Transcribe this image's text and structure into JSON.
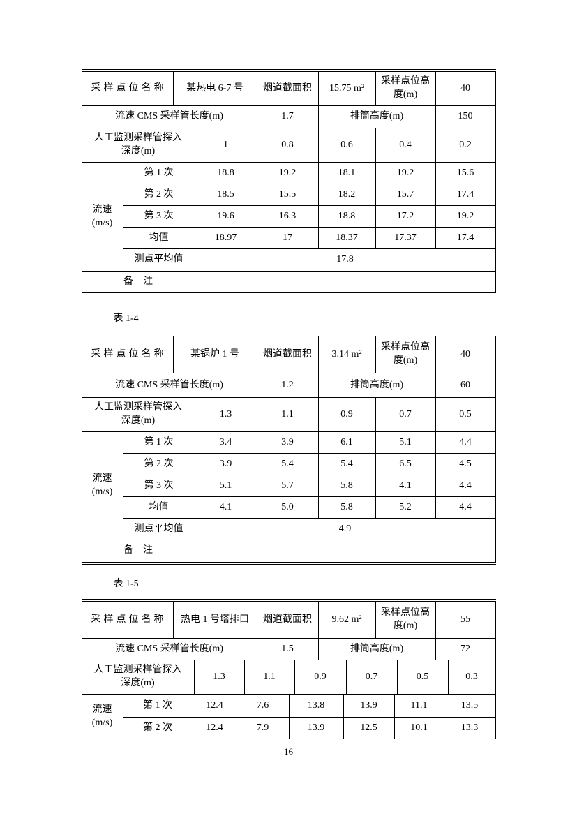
{
  "page_number": "16",
  "labels": {
    "name": "采样点位名称",
    "area": "烟道截面积",
    "height": "采样点位高\n度(m)",
    "cms": "流速 CMS 采样管长度(m)",
    "stack": "排筒高度(m)",
    "probe": "人工监测采样管探入\n深度(m)",
    "speed": "流速\n(m/s)",
    "point_avg": "测点平均值",
    "remark": "备　注"
  },
  "caption_b": "表 1-4",
  "caption_c": "表 1-5",
  "table_a": {
    "name_value": "某热电 6-7 号",
    "area_value": "15.75 m²",
    "height_value": "40",
    "cms_value": "1.7",
    "stack_value": "150",
    "probe_values": [
      "1",
      "0.8",
      "0.6",
      "0.4",
      "0.2"
    ],
    "trials": [
      {
        "label": "第 1 次",
        "values": [
          "18.8",
          "19.2",
          "18.1",
          "19.2",
          "15.6"
        ]
      },
      {
        "label": "第 2 次",
        "values": [
          "18.5",
          "15.5",
          "18.2",
          "15.7",
          "17.4"
        ]
      },
      {
        "label": "第 3 次",
        "values": [
          "19.6",
          "16.3",
          "18.8",
          "17.2",
          "19.2"
        ]
      },
      {
        "label": "均值",
        "values": [
          "18.97",
          "17",
          "18.37",
          "17.37",
          "17.4"
        ]
      }
    ],
    "point_avg_value": "17.8",
    "remark_value": ""
  },
  "table_b": {
    "name_value": "某锅炉 1 号",
    "area_value": "3.14 m²",
    "height_value": "40",
    "cms_value": "1.2",
    "stack_value": "60",
    "probe_values": [
      "1.3",
      "1.1",
      "0.9",
      "0.7",
      "0.5"
    ],
    "trials": [
      {
        "label": "第 1 次",
        "values": [
          "3.4",
          "3.9",
          "6.1",
          "5.1",
          "4.4"
        ]
      },
      {
        "label": "第 2 次",
        "values": [
          "3.9",
          "5.4",
          "5.4",
          "6.5",
          "4.5"
        ]
      },
      {
        "label": "第 3 次",
        "values": [
          "5.1",
          "5.7",
          "5.8",
          "4.1",
          "4.4"
        ]
      },
      {
        "label": "均值",
        "values": [
          "4.1",
          "5.0",
          "5.8",
          "5.2",
          "4.4"
        ]
      }
    ],
    "point_avg_value": "4.9",
    "remark_value": ""
  },
  "table_c": {
    "name_value": "热电 1 号塔排口",
    "area_value": "9.62 m²",
    "height_value": "55",
    "cms_value": "1.5",
    "stack_value": "72",
    "probe_values": [
      "1.3",
      "1.1",
      "0.9",
      "0.7",
      "0.5",
      "0.3"
    ],
    "trials": [
      {
        "label": "第 1 次",
        "values": [
          "12.4",
          "7.6",
          "13.8",
          "13.9",
          "11.1",
          "13.5"
        ]
      },
      {
        "label": "第 2 次",
        "values": [
          "12.4",
          "7.9",
          "13.9",
          "12.5",
          "10.1",
          "13.3"
        ]
      }
    ]
  }
}
